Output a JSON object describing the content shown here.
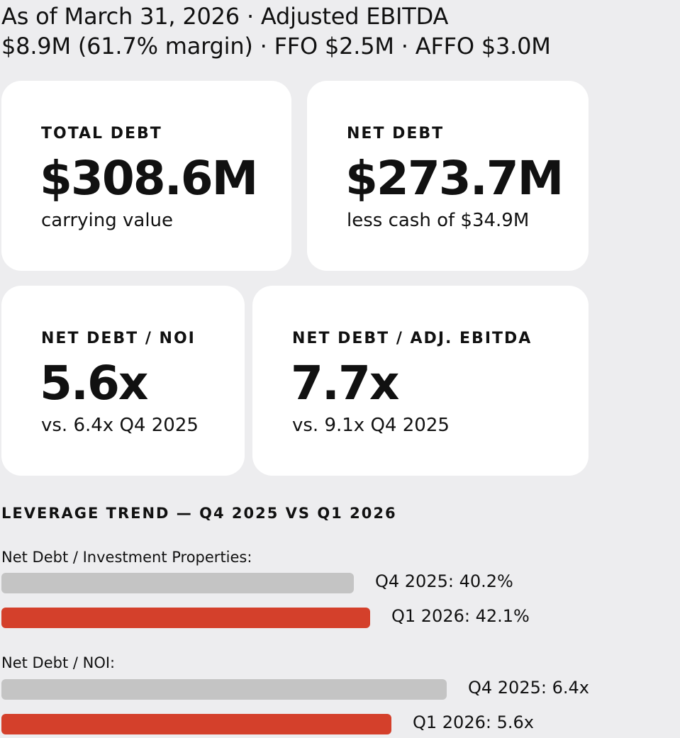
{
  "header": {
    "line1": "As of March 31, 2026 · Adjusted EBITDA",
    "line2": "$8.9M (61.7% margin) · FFO $2.5M · AFFO $3.0M"
  },
  "cards": {
    "total_debt": {
      "label": "TOTAL DEBT",
      "value": "$308.6M",
      "sub": "carrying value"
    },
    "net_debt": {
      "label": "NET DEBT",
      "value": "$273.7M",
      "sub": "less cash of $34.9M"
    },
    "net_debt_noi": {
      "label": "NET DEBT / NOI",
      "value": "5.6x",
      "sub": "vs. 6.4x Q4 2025"
    },
    "net_debt_ebitda": {
      "label": "NET DEBT / ADJ. EBITDA",
      "value": "7.7x",
      "sub": "vs. 9.1x Q4 2025"
    }
  },
  "colors": {
    "prior": "#c4c4c4",
    "current": "#d4402b",
    "card": "#ffffff",
    "background": "#ededef"
  },
  "chart_data": {
    "type": "bar",
    "orientation": "horizontal",
    "title": "LEVERAGE TREND — Q4 2025 VS Q1 2026",
    "groups": [
      {
        "name": "Net Debt / Investment Properties:",
        "unit": "%",
        "bars": [
          {
            "period": "Q4 2025",
            "value": 40.2,
            "label": "Q4 2025: 40.2%",
            "color": "#c4c4c4"
          },
          {
            "period": "Q1 2026",
            "value": 42.1,
            "label": "Q1 2026: 42.1%",
            "color": "#d4402b"
          }
        ]
      },
      {
        "name": "Net Debt / NOI:",
        "unit": "x",
        "bars": [
          {
            "period": "Q4 2025",
            "value": 6.4,
            "label": "Q4 2025: 6.4x",
            "color": "#c4c4c4"
          },
          {
            "period": "Q1 2026",
            "value": 5.6,
            "label": "Q1 2026: 5.6x",
            "color": "#d4402b"
          }
        ]
      }
    ]
  }
}
